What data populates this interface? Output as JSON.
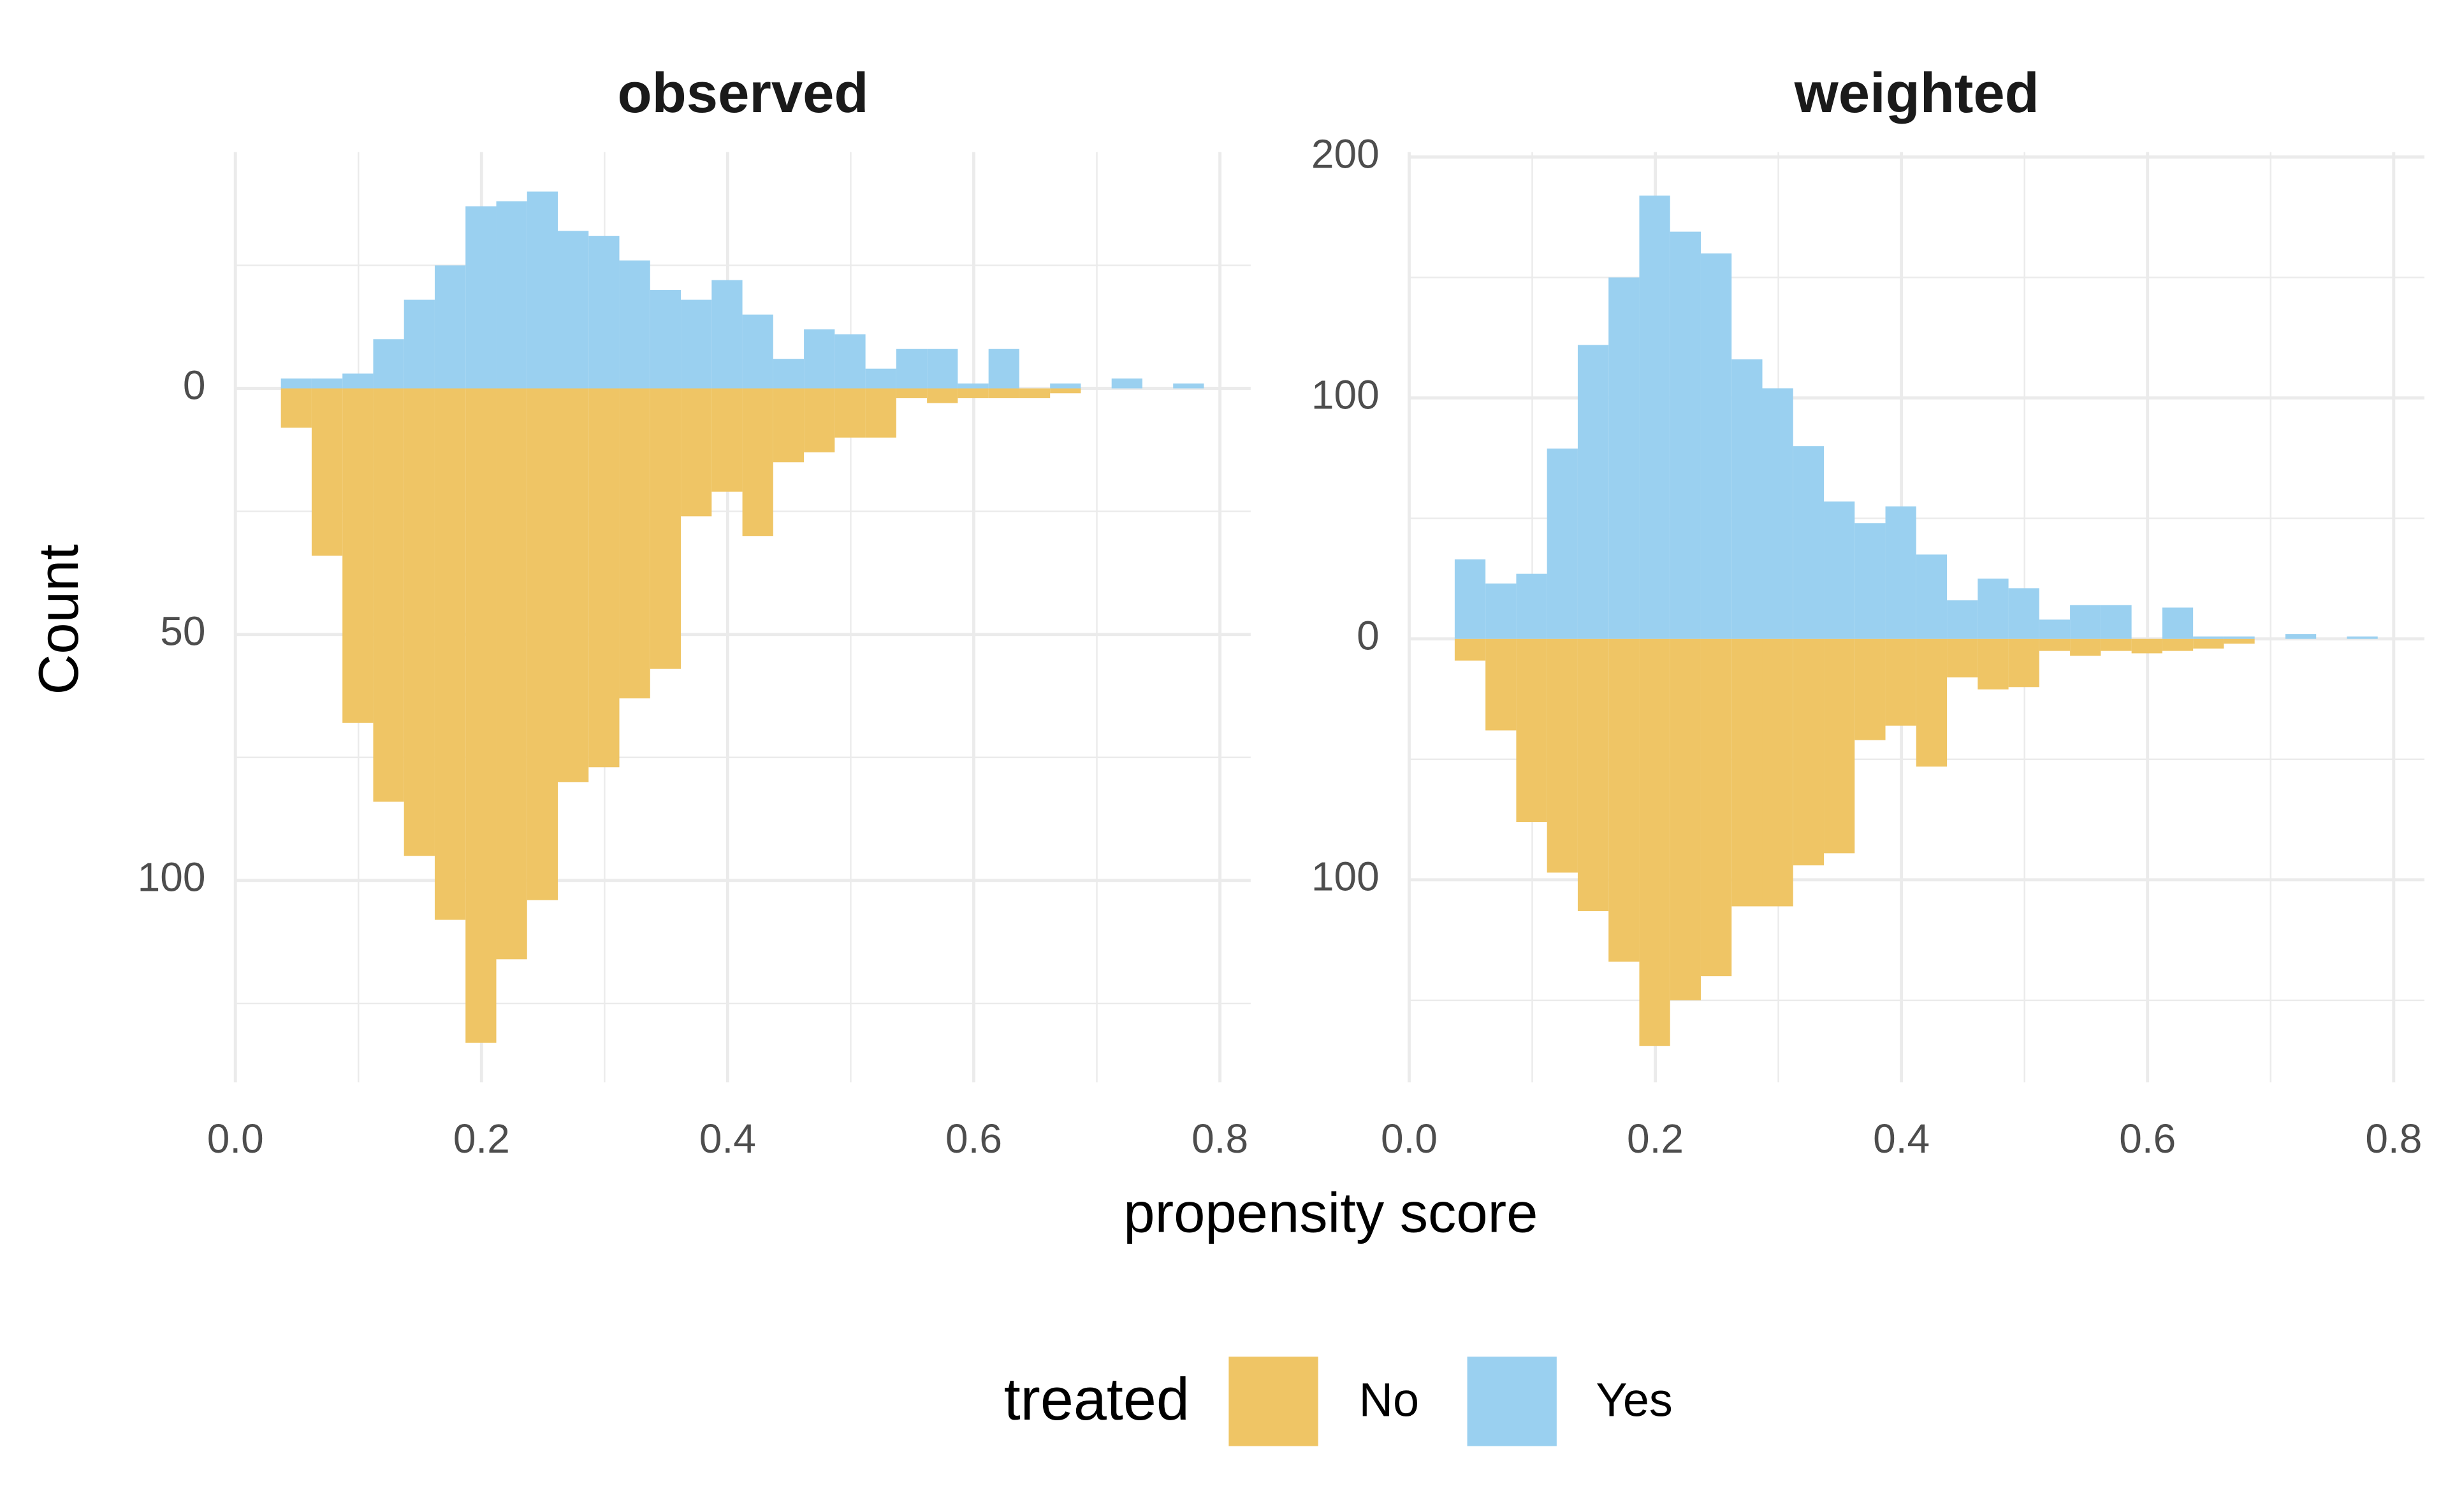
{
  "figure": {
    "xlabel": "propensity score",
    "ylabel": "Count",
    "legend_title": "treated"
  },
  "chart_data": [
    {
      "type": "histogram",
      "title": "observed",
      "bins": [
        0.037,
        0.062,
        0.087,
        0.112,
        0.137,
        0.162,
        0.187,
        0.212,
        0.237,
        0.262,
        0.287,
        0.312,
        0.337,
        0.362,
        0.387,
        0.412,
        0.437,
        0.462,
        0.487,
        0.512,
        0.537,
        0.562,
        0.587,
        0.612,
        0.637,
        0.662,
        0.687,
        0.712,
        0.737,
        0.762,
        0.787
      ],
      "series": [
        {
          "name": "No",
          "color": "#efc565",
          "values": [
            -8,
            -34,
            -68,
            -84,
            -95,
            -108,
            -133,
            -116,
            -104,
            -80,
            -77,
            -63,
            -57,
            -26,
            -21,
            -30,
            -15,
            -13,
            -10,
            -10,
            -2,
            -3,
            -2,
            -2,
            -2,
            -1,
            0,
            0,
            0,
            0
          ]
        },
        {
          "name": "Yes",
          "color": "#9ad0f0",
          "values": [
            2,
            2,
            3,
            10,
            18,
            25,
            37,
            38,
            40,
            32,
            31,
            26,
            20,
            18,
            22,
            15,
            6,
            12,
            11,
            4,
            8,
            8,
            1,
            8,
            0,
            1,
            0,
            2,
            0,
            1
          ]
        }
      ],
      "xlim": [
        0,
        0.825
      ],
      "xticks": [
        {
          "value": 0,
          "label": "0.0"
        },
        0.2,
        0.4,
        0.6,
        0.8
      ],
      "ylim": [
        -141,
        48
      ],
      "yticks": [
        0,
        {
          "value": -50,
          "label": "50"
        },
        {
          "value": -100,
          "label": "100"
        }
      ],
      "grid": true
    },
    {
      "type": "histogram",
      "title": "weighted",
      "bins": [
        0.037,
        0.062,
        0.087,
        0.112,
        0.137,
        0.162,
        0.187,
        0.212,
        0.237,
        0.262,
        0.287,
        0.312,
        0.337,
        0.362,
        0.387,
        0.412,
        0.437,
        0.462,
        0.487,
        0.512,
        0.537,
        0.562,
        0.587,
        0.612,
        0.637,
        0.662,
        0.687,
        0.712,
        0.737,
        0.762,
        0.787
      ],
      "series": [
        {
          "name": "No",
          "color": "#efc565",
          "values": [
            -9,
            -38,
            -76,
            -97,
            -113,
            -134,
            -169,
            -150,
            -140,
            -111,
            -111,
            -94,
            -89,
            -42,
            -36,
            -53,
            -16,
            -21,
            -20,
            -5,
            -7,
            -5,
            -6,
            -5,
            -4,
            -2,
            0,
            0,
            0,
            0
          ]
        },
        {
          "name": "Yes",
          "color": "#9ad0f0",
          "values": [
            33,
            23,
            27,
            79,
            122,
            150,
            184,
            169,
            160,
            116,
            104,
            80,
            57,
            48,
            55,
            35,
            16,
            25,
            21,
            8,
            14,
            14,
            0,
            13,
            1,
            1,
            0,
            2,
            0,
            1
          ]
        }
      ],
      "xlim": [
        0,
        0.825
      ],
      "xticks": [
        {
          "value": 0,
          "label": "0.0"
        },
        0.2,
        0.4,
        0.6,
        0.8
      ],
      "ylim": [
        -184,
        202
      ],
      "yticks": [
        200,
        100,
        0,
        {
          "value": -100,
          "label": "100"
        }
      ],
      "grid": true
    }
  ]
}
